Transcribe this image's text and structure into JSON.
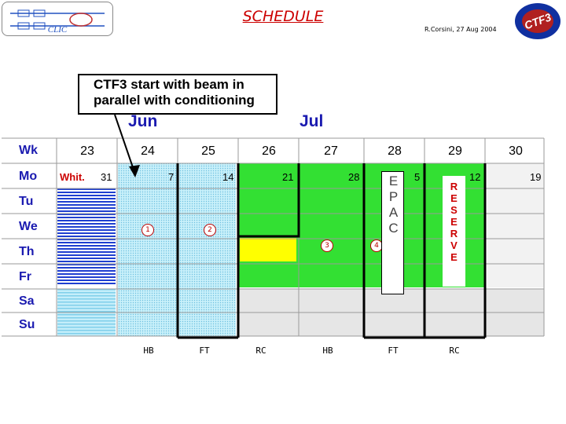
{
  "header": {
    "title": "SCHEDULE",
    "author": "R.Corsini, 27 Aug 2004",
    "clic_logo_text": "CLIC",
    "ctf_logo_text": "CTF3"
  },
  "callout": {
    "line1": "CTF3 start with beam in",
    "line2": "parallel with conditioning"
  },
  "months": [
    "Jun",
    "Jul"
  ],
  "weeks": {
    "header_label": "Wk",
    "numbers": [
      "23",
      "24",
      "25",
      "26",
      "27",
      "28",
      "29",
      "30"
    ],
    "monday_dates": [
      "31",
      "7",
      "14",
      "21",
      "28",
      "5",
      "12",
      "19"
    ],
    "whit_label": "Whit."
  },
  "days": [
    "Mo",
    "Tu",
    "We",
    "Th",
    "Fr",
    "Sa",
    "Su"
  ],
  "markers": [
    "1",
    "2",
    "3",
    "4"
  ],
  "epac": [
    "E",
    "P",
    "A",
    "C"
  ],
  "reserve": [
    "R",
    "E",
    "S",
    "E",
    "R",
    "V",
    "E"
  ],
  "bottom_labels": [
    "HB",
    "FT",
    "RC",
    "HB",
    "FT",
    "RC"
  ],
  "colors": {
    "green": "#33e033",
    "light_blue": "#aee6f6",
    "yellow": "#ffff00",
    "gray": "#e6e6e6",
    "stripe_blue": "#1f3fd0",
    "label_blue": "#1a1ab0",
    "title_red": "#cc0000"
  }
}
